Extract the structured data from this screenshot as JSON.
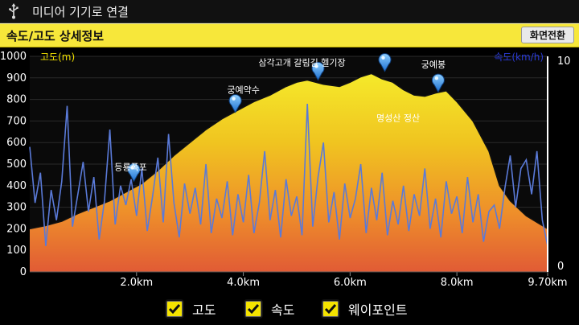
{
  "topbar": {
    "title": "미디어 기기로 연결"
  },
  "header": {
    "title": "속도/고도 상세정보",
    "switch_button": "화면전환"
  },
  "legend": [
    {
      "label": "고도",
      "checked": true
    },
    {
      "label": "속도",
      "checked": true
    },
    {
      "label": "웨이포인트",
      "checked": true
    }
  ],
  "colors": {
    "accent": "#f7e73a",
    "speed_line": "#5a7ad8",
    "elev_top": "#f2e52c",
    "elev_bottom": "#e06a35"
  },
  "chart_data": {
    "type": "area",
    "y_left_label": "고도(m)",
    "y_right_label": "속도(km/h)",
    "y_left_range": [
      0,
      1000
    ],
    "y_right_range": [
      0,
      10
    ],
    "y_left_ticks": [
      "1000",
      "900",
      "800",
      "700",
      "600",
      "500",
      "400",
      "300",
      "200",
      "100",
      "0"
    ],
    "y_right_ticks": [
      "10",
      "0"
    ],
    "x_range": [
      0,
      9.7
    ],
    "x_ticks": [
      {
        "value": 2.0,
        "label": "2.0km"
      },
      {
        "value": 4.0,
        "label": "4.0km"
      },
      {
        "value": 6.0,
        "label": "6.0km"
      },
      {
        "value": 8.0,
        "label": "8.0km"
      },
      {
        "value": 9.7,
        "label": "9.70km"
      }
    ],
    "elevation": {
      "x": [
        0,
        0.3,
        0.6,
        0.9,
        1.2,
        1.5,
        1.8,
        2.1,
        2.4,
        2.7,
        3.0,
        3.3,
        3.6,
        3.9,
        4.2,
        4.5,
        4.8,
        5.0,
        5.2,
        5.5,
        5.8,
        6.0,
        6.2,
        6.4,
        6.6,
        6.8,
        7.0,
        7.2,
        7.4,
        7.6,
        7.8,
        8.0,
        8.3,
        8.6,
        8.8,
        9.0,
        9.3,
        9.5,
        9.7
      ],
      "y": [
        200,
        215,
        235,
        270,
        300,
        330,
        370,
        410,
        470,
        540,
        600,
        660,
        710,
        750,
        790,
        820,
        860,
        880,
        890,
        870,
        860,
        880,
        905,
        920,
        895,
        880,
        845,
        820,
        815,
        830,
        840,
        790,
        700,
        560,
        400,
        330,
        260,
        230,
        200
      ]
    },
    "speed": {
      "x": [
        0,
        0.1,
        0.2,
        0.3,
        0.4,
        0.5,
        0.6,
        0.7,
        0.8,
        0.9,
        1.0,
        1.1,
        1.2,
        1.3,
        1.4,
        1.5,
        1.6,
        1.7,
        1.8,
        1.9,
        2.0,
        2.1,
        2.2,
        2.3,
        2.4,
        2.5,
        2.6,
        2.7,
        2.8,
        2.9,
        3.0,
        3.1,
        3.2,
        3.3,
        3.4,
        3.5,
        3.6,
        3.7,
        3.8,
        3.9,
        4.0,
        4.1,
        4.2,
        4.3,
        4.4,
        4.5,
        4.6,
        4.7,
        4.8,
        4.9,
        5.0,
        5.1,
        5.2,
        5.3,
        5.4,
        5.5,
        5.6,
        5.7,
        5.8,
        5.9,
        6.0,
        6.1,
        6.2,
        6.3,
        6.4,
        6.5,
        6.6,
        6.7,
        6.8,
        6.9,
        7.0,
        7.1,
        7.2,
        7.3,
        7.4,
        7.5,
        7.6,
        7.7,
        7.8,
        7.9,
        8.0,
        8.1,
        8.2,
        8.3,
        8.4,
        8.5,
        8.6,
        8.7,
        8.8,
        8.9,
        9.0,
        9.1,
        9.2,
        9.3,
        9.4,
        9.5,
        9.6,
        9.7
      ],
      "y": [
        5.8,
        3.2,
        4.6,
        1.2,
        3.8,
        2.4,
        4.2,
        7.7,
        2.1,
        3.6,
        5.1,
        2.8,
        4.4,
        1.5,
        3.3,
        6.6,
        2.2,
        4.0,
        3.1,
        4.3,
        2.6,
        4.8,
        1.9,
        3.5,
        5.3,
        2.3,
        6.4,
        3.2,
        1.6,
        4.1,
        2.7,
        3.9,
        2.2,
        5.0,
        1.8,
        3.4,
        2.5,
        4.2,
        1.7,
        3.6,
        2.3,
        4.5,
        1.8,
        3.2,
        5.6,
        2.4,
        3.8,
        1.6,
        4.3,
        2.6,
        3.5,
        1.7,
        7.8,
        2.1,
        4.4,
        6.0,
        2.3,
        3.7,
        1.5,
        4.1,
        2.5,
        3.4,
        5.0,
        1.8,
        3.9,
        2.4,
        4.6,
        1.7,
        3.3,
        2.2,
        4.0,
        1.9,
        3.6,
        2.6,
        4.8,
        2.0,
        3.4,
        1.6,
        4.2,
        2.7,
        3.5,
        1.8,
        4.4,
        2.3,
        3.6,
        1.4,
        2.8,
        3.1,
        2.0,
        3.9,
        5.4,
        3.0,
        4.8,
        5.2,
        3.6,
        5.6,
        2.4,
        1.2
      ]
    },
    "waypoints": [
      {
        "name": "등룡폭포",
        "x": 1.95,
        "y": 420
      },
      {
        "name": "궁예약수",
        "x": 3.85,
        "y": 740
      },
      {
        "name": "삼각고개 갈림길 헬기장",
        "x": 5.4,
        "y": 890
      },
      {
        "name": "",
        "x": 6.65,
        "y": 930
      },
      {
        "name": "궁예봉",
        "x": 7.65,
        "y": 835
      },
      {
        "name": "명성산 정산",
        "x": 6.9,
        "y": 700
      }
    ],
    "grid": true
  }
}
